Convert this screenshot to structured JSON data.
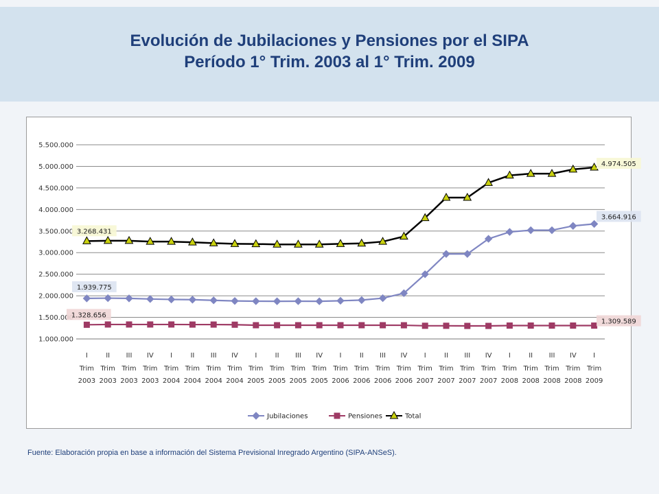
{
  "header": {
    "title_line1": "Evolución de Jubilaciones y Pensiones por el SIPA",
    "title_line2": "Período 1° Trim. 2003 al 1° Trim. 2009"
  },
  "source": "Fuente: Elaboración propia en base a información del Sistema Previsional Inregrado Argentino (SIPA-ANSeS).",
  "colors": {
    "jubilaciones": "#7f86c2",
    "pensiones": "#9e3a64",
    "total": "#000000",
    "total_marker": "#c9d10f",
    "grid": "#8a8a8a"
  },
  "chart_data": {
    "type": "line",
    "title": "",
    "xlabel": "",
    "ylabel": "",
    "ylim": [
      1000000,
      5500000
    ],
    "yticks": [
      {
        "value": 1000000,
        "label": "1.000.000"
      },
      {
        "value": 1500000,
        "label": "1.500.000"
      },
      {
        "value": 2000000,
        "label": "2.000.000"
      },
      {
        "value": 2500000,
        "label": "2.500.000"
      },
      {
        "value": 3000000,
        "label": "3.000.000"
      },
      {
        "value": 3500000,
        "label": "3.500.000"
      },
      {
        "value": 4000000,
        "label": "4.000.000"
      },
      {
        "value": 4500000,
        "label": "4.500.000"
      },
      {
        "value": 5000000,
        "label": "5.000.000"
      },
      {
        "value": 5500000,
        "label": "5.500.000"
      }
    ],
    "categories": [
      {
        "q": "I",
        "t": "Trim",
        "y": "2003"
      },
      {
        "q": "II",
        "t": "Trim",
        "y": "2003"
      },
      {
        "q": "III",
        "t": "Trim",
        "y": "2003"
      },
      {
        "q": "IV",
        "t": "Trim",
        "y": "2003"
      },
      {
        "q": "I",
        "t": "Trim",
        "y": "2004"
      },
      {
        "q": "II",
        "t": "Trim",
        "y": "2004"
      },
      {
        "q": "III",
        "t": "Trim",
        "y": "2004"
      },
      {
        "q": "IV",
        "t": "Trim",
        "y": "2004"
      },
      {
        "q": "I",
        "t": "Trim",
        "y": "2005"
      },
      {
        "q": "II",
        "t": "Trim",
        "y": "2005"
      },
      {
        "q": "III",
        "t": "Trim",
        "y": "2005"
      },
      {
        "q": "IV",
        "t": "Trim",
        "y": "2005"
      },
      {
        "q": "I",
        "t": "Trim",
        "y": "2006"
      },
      {
        "q": "II",
        "t": "Trim",
        "y": "2006"
      },
      {
        "q": "III",
        "t": "Trim",
        "y": "2006"
      },
      {
        "q": "IV",
        "t": "Trim",
        "y": "2006"
      },
      {
        "q": "I",
        "t": "Trim",
        "y": "2007"
      },
      {
        "q": "II",
        "t": "Trim",
        "y": "2007"
      },
      {
        "q": "III",
        "t": "Trim",
        "y": "2007"
      },
      {
        "q": "IV",
        "t": "Trim",
        "y": "2007"
      },
      {
        "q": "I",
        "t": "Trim",
        "y": "2008"
      },
      {
        "q": "II",
        "t": "Trim",
        "y": "2008"
      },
      {
        "q": "III",
        "t": "Trim",
        "y": "2008"
      },
      {
        "q": "IV",
        "t": "Trim",
        "y": "2008"
      },
      {
        "q": "I",
        "t": "Trim",
        "y": "2009"
      }
    ],
    "series": [
      {
        "name": "Jubilaciones",
        "key": "jubilaciones",
        "marker": "diamond",
        "values": [
          1939775,
          1945000,
          1940000,
          1925000,
          1915000,
          1910000,
          1895000,
          1880000,
          1875000,
          1873000,
          1875000,
          1873000,
          1885000,
          1900000,
          1945000,
          2060000,
          2500000,
          2970000,
          2970000,
          3320000,
          3480000,
          3520000,
          3520000,
          3620000,
          3664916
        ],
        "first_label": "1.939.775",
        "last_label": "3.664.916"
      },
      {
        "name": "Pensiones",
        "key": "pensiones",
        "marker": "square",
        "values": [
          1328656,
          1335000,
          1335000,
          1335000,
          1335000,
          1333000,
          1333000,
          1330000,
          1318000,
          1318000,
          1318000,
          1318000,
          1318000,
          1318000,
          1318000,
          1317000,
          1305000,
          1305000,
          1302000,
          1302000,
          1310000,
          1310000,
          1310000,
          1310000,
          1309589
        ],
        "first_label": "1.328.656",
        "last_label": "1.309.589"
      },
      {
        "name": "Total",
        "key": "total",
        "marker": "triangle",
        "values": [
          3268431,
          3275000,
          3275000,
          3255000,
          3255000,
          3240000,
          3220000,
          3205000,
          3200000,
          3190000,
          3190000,
          3190000,
          3205000,
          3215000,
          3255000,
          3375000,
          3805000,
          4275000,
          4275000,
          4620000,
          4790000,
          4830000,
          4830000,
          4930000,
          4974505
        ],
        "first_label": "3.268.431",
        "last_label": "4.974.505"
      }
    ],
    "legend": "bottom",
    "grid": true
  }
}
